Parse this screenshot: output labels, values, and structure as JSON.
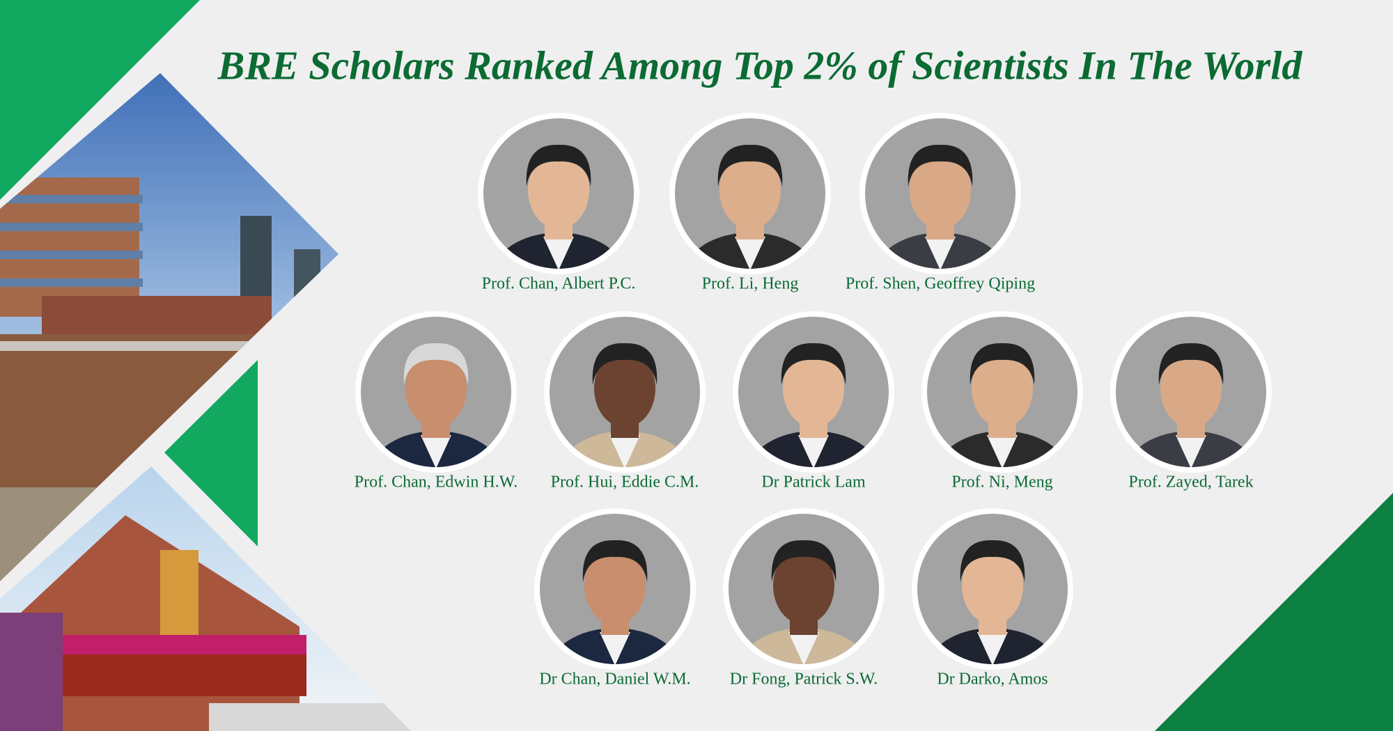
{
  "header": {
    "title": "BRE Scholars Ranked Among Top 2% of Scientists In The World"
  },
  "scholars": {
    "rows": [
      [
        "Prof. Chan, Albert P.C.",
        "Prof. Li, Heng",
        "Prof. Shen, Geoffrey Qiping"
      ],
      [
        "Prof. Chan, Edwin H.W.",
        "Prof. Hui, Eddie C.M.",
        "Dr Patrick Lam",
        "Prof. Ni, Meng",
        "Prof. Zayed, Tarek"
      ],
      [
        "Dr Chan, Daniel W.M.",
        "Dr Fong, Patrick S.W.",
        "Dr Darko, Amos"
      ]
    ]
  }
}
